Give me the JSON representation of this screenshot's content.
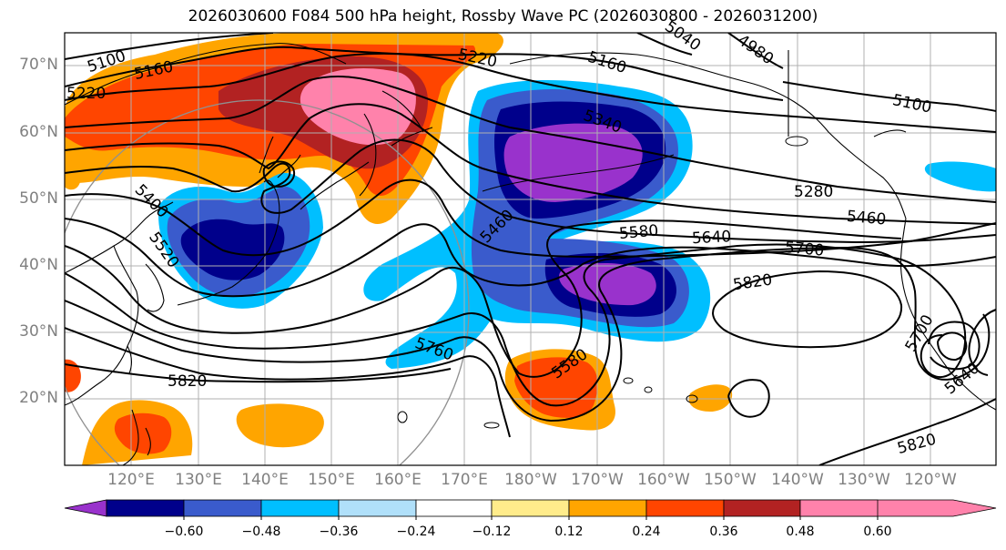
{
  "title": "2026030600 F084 500 hPa height, Rossby Wave PC (2026030800 - 2026031200)",
  "lat_labels": [
    "70°N",
    "60°N",
    "50°N",
    "40°N",
    "30°N",
    "20°N"
  ],
  "lon_labels": [
    "120°E",
    "130°E",
    "140°E",
    "150°E",
    "160°E",
    "170°E",
    "180°W",
    "170°W",
    "160°W",
    "150°W",
    "140°W",
    "130°W",
    "120°W"
  ],
  "contour_labels": [
    "5100",
    "5160",
    "5220",
    "5220",
    "5040",
    "4980",
    "5160",
    "5100",
    "5400",
    "5520",
    "5340",
    "5460",
    "5580",
    "5640",
    "5700",
    "5820",
    "5760",
    "5820",
    "5700",
    "5580",
    "5280",
    "5460",
    "5640",
    "5820"
  ],
  "colorbar": {
    "ticks": [
      "−0.60",
      "−0.48",
      "−0.36",
      "−0.24",
      "−0.12",
      "0.12",
      "0.24",
      "0.36",
      "0.48",
      "0.60"
    ],
    "colors": [
      "#9932cc",
      "#00008b",
      "#3a5bcc",
      "#00bfff",
      "#b0e0fa",
      "#ffffff",
      "#ffec8b",
      "#ffa500",
      "#ff4500",
      "#b22222",
      "#ff82ab"
    ]
  }
}
